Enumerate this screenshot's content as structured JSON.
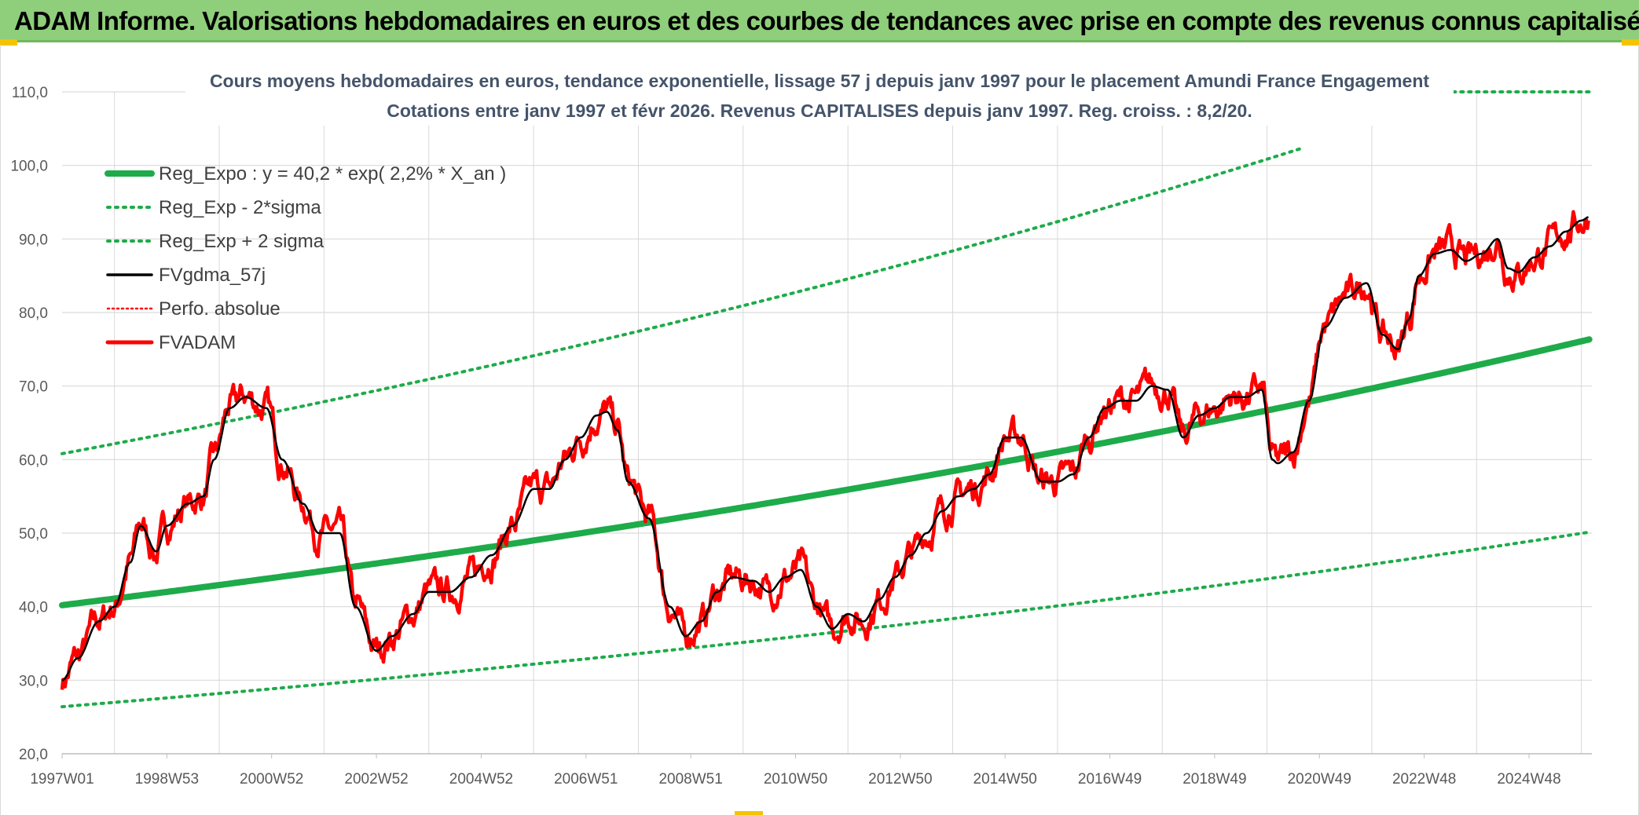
{
  "header": {
    "title": "ADAM Informe. Valorisations hebdomadaires en euros et des courbes de tendances avec prise en compte des revenus connus capitalisés"
  },
  "colors": {
    "header_bg": "#8fce7a",
    "reg_green": "#1eab4a",
    "price_red": "#ff0000",
    "smooth_black": "#000000",
    "grid": "#d9d9d9"
  },
  "chart_data": {
    "type": "line",
    "title": "Cours moyens hebdomadaires en euros, tendance exponentielle, lissage 57 j depuis janv 1997 pour le placement Amundi France Engagement",
    "subtitle": "Cotations entre janv 1997 et févr 2026. Revenus CAPITALISES depuis janv 1997. Reg. croiss. : 8,2/20.",
    "xlabel": "",
    "ylabel": "",
    "ylim": [
      20,
      110
    ],
    "yticks": [
      "20,0",
      "30,0",
      "40,0",
      "50,0",
      "60,0",
      "70,0",
      "80,0",
      "90,0",
      "100,0",
      "110,0"
    ],
    "xlim": [
      1997.0,
      2026.2
    ],
    "xticks": [
      {
        "label": "1997W01",
        "x": 1997.0
      },
      {
        "label": "1998W53",
        "x": 1999.0
      },
      {
        "label": "2000W52",
        "x": 2001.0
      },
      {
        "label": "2002W52",
        "x": 2003.0
      },
      {
        "label": "2004W52",
        "x": 2005.0
      },
      {
        "label": "2006W51",
        "x": 2007.0
      },
      {
        "label": "2008W51",
        "x": 2009.0
      },
      {
        "label": "2010W50",
        "x": 2011.0
      },
      {
        "label": "2012W50",
        "x": 2013.0
      },
      {
        "label": "2014W50",
        "x": 2015.0
      },
      {
        "label": "2016W49",
        "x": 2017.0
      },
      {
        "label": "2018W49",
        "x": 2019.0
      },
      {
        "label": "2020W49",
        "x": 2021.0
      },
      {
        "label": "2022W48",
        "x": 2023.0
      },
      {
        "label": "2024W48",
        "x": 2025.0
      }
    ],
    "legend": [
      {
        "key": "reg",
        "label": "Reg_Expo : y = 40,2 * exp( 2,2% *  X_an )"
      },
      {
        "key": "low",
        "label": "Reg_Exp - 2*sigma"
      },
      {
        "key": "high",
        "label": "Reg_Exp + 2 sigma"
      },
      {
        "key": "smooth",
        "label": "FVgdma_57j"
      },
      {
        "key": "perfo",
        "label": "Perfo. absolue"
      },
      {
        "key": "price",
        "label": "FVADAM"
      }
    ],
    "legend_position": "top-left",
    "regression": {
      "a": 40.2,
      "rate": 0.022,
      "x0": 1997.0
    },
    "upper_band": {
      "a": 60.8,
      "rate": 0.022,
      "x0": 1997.0,
      "cap": 110
    },
    "lower_band": {
      "a": 26.4,
      "rate": 0.022,
      "x0": 1997.0
    },
    "series_keypoints": {
      "x": [
        1997.0,
        1997.3,
        1997.7,
        1998.0,
        1998.3,
        1998.5,
        1998.8,
        1999.0,
        1999.4,
        1999.7,
        1999.9,
        2000.2,
        2000.5,
        2000.9,
        2001.2,
        2001.6,
        2001.9,
        2002.3,
        2002.6,
        2003.0,
        2003.3,
        2003.7,
        2004.0,
        2004.4,
        2004.8,
        2005.2,
        2005.6,
        2006.0,
        2006.3,
        2006.6,
        2006.9,
        2007.2,
        2007.4,
        2007.6,
        2007.8,
        2008.2,
        2008.6,
        2008.9,
        2009.2,
        2009.5,
        2009.8,
        2010.2,
        2010.5,
        2010.8,
        2011.1,
        2011.4,
        2011.7,
        2012.0,
        2012.3,
        2012.6,
        2012.9,
        2013.2,
        2013.5,
        2013.8,
        2014.1,
        2014.4,
        2014.7,
        2015.0,
        2015.3,
        2015.7,
        2016.0,
        2016.3,
        2016.6,
        2016.9,
        2017.2,
        2017.5,
        2017.8,
        2018.1,
        2018.4,
        2018.7,
        2019.0,
        2019.3,
        2019.6,
        2019.9,
        2020.1,
        2020.2,
        2020.5,
        2020.8,
        2021.1,
        2021.5,
        2021.9,
        2022.2,
        2022.5,
        2022.7,
        2022.9,
        2023.2,
        2023.5,
        2023.8,
        2024.1,
        2024.4,
        2024.6,
        2024.8,
        2025.1,
        2025.4,
        2025.7,
        2026.0,
        2026.15
      ],
      "smooth": [
        30.0,
        33.0,
        38.0,
        40.0,
        46.0,
        51.0,
        47.5,
        51.0,
        54.0,
        55.0,
        60.0,
        67.0,
        68.5,
        67.0,
        60.0,
        54.0,
        50.0,
        50.0,
        40.0,
        34.0,
        36.0,
        39.0,
        42.0,
        42.0,
        44.0,
        47.0,
        51.0,
        56.0,
        56.0,
        60.0,
        63.0,
        66.0,
        66.5,
        64.0,
        57.0,
        52.0,
        40.0,
        36.0,
        38.0,
        42.0,
        44.0,
        43.5,
        42.0,
        44.0,
        45.0,
        40.0,
        37.0,
        39.0,
        38.0,
        41.0,
        44.0,
        47.0,
        50.0,
        53.0,
        55.0,
        56.0,
        58.0,
        63.0,
        63.0,
        57.0,
        57.0,
        58.0,
        63.0,
        67.0,
        68.0,
        68.0,
        70.0,
        69.5,
        63.0,
        66.0,
        67.0,
        68.5,
        68.5,
        69.5,
        60.0,
        59.5,
        61.0,
        68.0,
        78.0,
        82.0,
        84.0,
        77.0,
        75.0,
        79.0,
        85.0,
        88.0,
        88.5,
        87.0,
        88.0,
        90.0,
        86.0,
        85.5,
        87.5,
        89.0,
        91.0,
        92.5,
        93.0
      ]
    }
  }
}
